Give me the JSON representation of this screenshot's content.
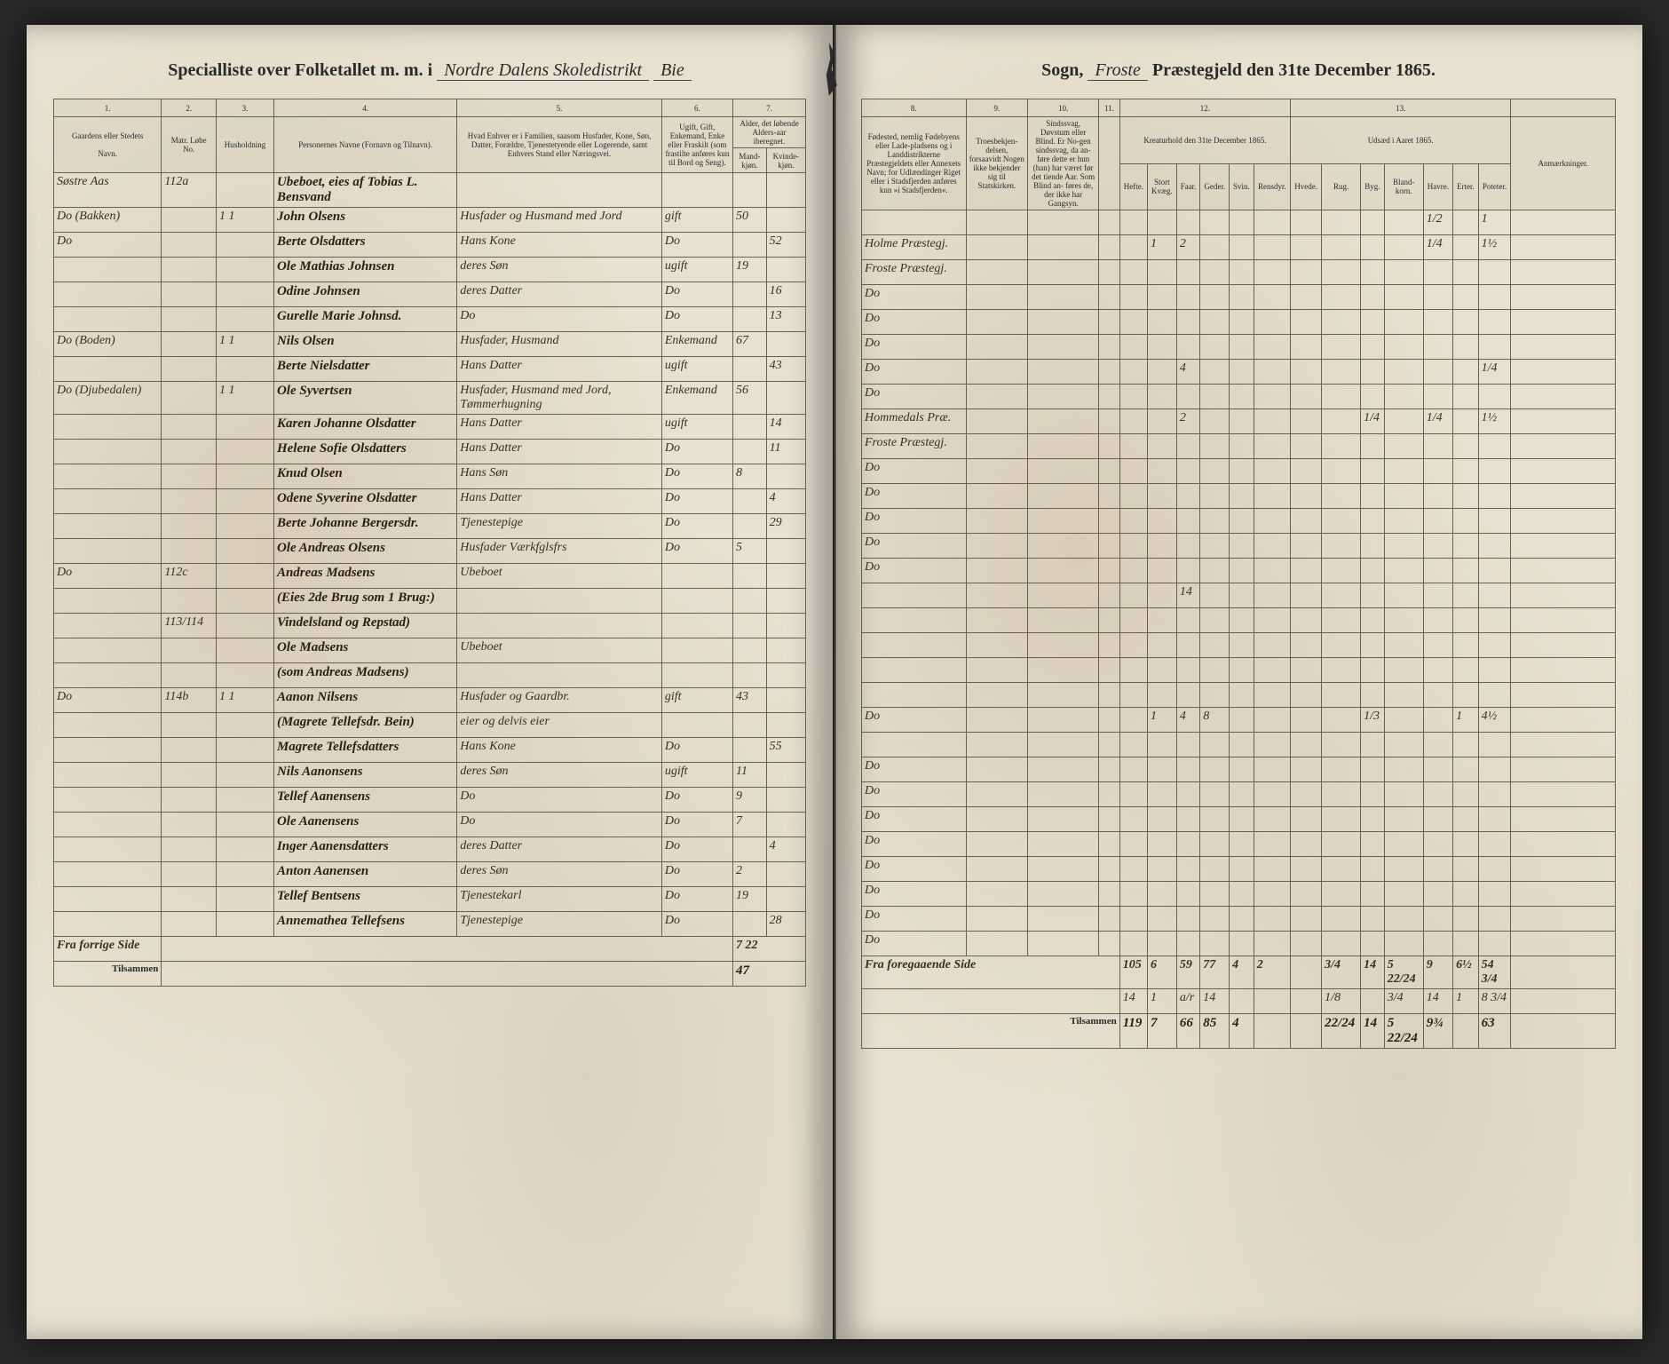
{
  "header": {
    "print_left": "Specialliste over Folketallet m. m. i",
    "written_district": "Nordre Dalens Skoledistrikt",
    "written_sogn": "Bie",
    "print_sogn": "Sogn,",
    "written_parish": "Froste",
    "print_right": "Præstegjeld den 31te December 1865."
  },
  "columns_left": {
    "c1": "1.",
    "c2": "2.",
    "c3": "3.",
    "c4": "4.",
    "c5": "5.",
    "c6": "6.",
    "c7": "7.",
    "h1": "Gaardens eller Stedets",
    "h1b": "Navn.",
    "h2a": "Matr. Løbe No.",
    "h2b": "",
    "h3": "Husholdning",
    "h4": "Personernes Navne (Fornavn og Tilnavn).",
    "h5": "Hvad Enhver er i Familien, saasom Husfader, Kone, Søn, Datter, Forældre, Tjenestetyende eller Logerende, samt Enhvers Stand eller Næringsvei.",
    "h6": "Ugift, Gift, Enkemand, Enke eller Fraskilt (som frastilte anføres kun til Bord og Seng).",
    "h7a": "Alder, det løbende Alders-aar iberegnet.",
    "h7m": "Mand-kjøn.",
    "h7k": "Kvinde-kjøn."
  },
  "columns_right": {
    "c8": "8.",
    "c9": "9.",
    "c10": "10.",
    "c11": "11.",
    "c12": "12.",
    "c13": "13.",
    "h8": "Fødested, nemlig Fødebyens eller Lade-pladsens og i Landdistrikterne Præstegjeldets eller Annexets Navn; for Udlændinger Riget eller i Stadsfjerden anføres kun »i Stadsfjerden«.",
    "h9": "Troesbekjen-delsen, forsaavidt Nogen ikke bekjender sig til Statskirken.",
    "h10": "Sindssvag, Døvstum eller Blind. Er No-gen sindssvag, da an-føre dette er hun (han) har været før det tiende Aar. Som Blind an- føres de, der ikke har Gangsyn.",
    "h11": "",
    "h12": "Kreaturhold den 31te December 1865.",
    "h12a": "Hefte.",
    "h12b": "Stort Kvæg.",
    "h12c": "Faar.",
    "h12d": "Geder.",
    "h12e": "Svin.",
    "h12f": "Rensdyr.",
    "h13": "Udsæd i Aaret 1865.",
    "h13a": "Hvede.",
    "h13b": "Rug.",
    "h13c": "Byg.",
    "h13d": "Bland-korn.",
    "h13e": "Havre.",
    "h13f": "Erter.",
    "h13g": "Poteter.",
    "h14": "Anmærkninger."
  },
  "rows": [
    {
      "farm": "Søstre Aas",
      "mno": "112a",
      "hh": "",
      "name": "Ubeboet, eies af Tobias L. Bensvand",
      "rel": "",
      "status": "",
      "ageM": "",
      "ageK": "",
      "birth": "",
      "c12": [
        "",
        "",
        "",
        "",
        "",
        ""
      ],
      "c13": [
        "",
        "",
        "",
        "",
        "1/2",
        "",
        "1"
      ]
    },
    {
      "farm": "Do (Bakken)",
      "mno": "",
      "hh": "1 1",
      "name": "John Olsens",
      "rel": "Husfader og Husmand med Jord",
      "status": "gift",
      "ageM": "50",
      "ageK": "",
      "birth": "Holme Præstegj.",
      "c12": [
        "",
        "1",
        "2",
        "",
        "",
        ""
      ],
      "c13": [
        "",
        "",
        "",
        "",
        "1/4",
        "",
        "1½"
      ]
    },
    {
      "farm": "Do",
      "mno": "",
      "hh": "",
      "name": "Berte Olsdatters",
      "rel": "Hans Kone",
      "status": "Do",
      "ageM": "",
      "ageK": "52",
      "birth": "Froste Præstegj.",
      "c12": [
        "",
        "",
        "",
        "",
        "",
        ""
      ],
      "c13": [
        "",
        "",
        "",
        "",
        "",
        "",
        ""
      ]
    },
    {
      "farm": "",
      "mno": "",
      "hh": "",
      "name": "Ole Mathias Johnsen",
      "rel": "deres Søn",
      "status": "ugift",
      "ageM": "19",
      "ageK": "",
      "birth": "Do",
      "c12": [
        "",
        "",
        "",
        "",
        "",
        ""
      ],
      "c13": [
        "",
        "",
        "",
        "",
        "",
        "",
        ""
      ]
    },
    {
      "farm": "",
      "mno": "",
      "hh": "",
      "name": "Odine Johnsen",
      "rel": "deres Datter",
      "status": "Do",
      "ageM": "",
      "ageK": "16",
      "birth": "Do",
      "c12": [
        "",
        "",
        "",
        "",
        "",
        ""
      ],
      "c13": [
        "",
        "",
        "",
        "",
        "",
        "",
        ""
      ]
    },
    {
      "farm": "",
      "mno": "",
      "hh": "",
      "name": "Gurelle Marie Johnsd.",
      "rel": "Do",
      "status": "Do",
      "ageM": "",
      "ageK": "13",
      "birth": "Do",
      "c12": [
        "",
        "",
        "",
        "",
        "",
        ""
      ],
      "c13": [
        "",
        "",
        "",
        "",
        "",
        "",
        ""
      ]
    },
    {
      "farm": "Do (Boden)",
      "mno": "",
      "hh": "1 1",
      "name": "Nils Olsen",
      "rel": "Husfader, Husmand",
      "status": "Enkemand",
      "ageM": "67",
      "ageK": "",
      "birth": "Do",
      "c12": [
        "",
        "",
        "4",
        "",
        "",
        ""
      ],
      "c13": [
        "",
        "",
        "",
        "",
        "",
        "",
        "1/4"
      ]
    },
    {
      "farm": "",
      "mno": "",
      "hh": "",
      "name": "Berte Nielsdatter",
      "rel": "Hans Datter",
      "status": "ugift",
      "ageM": "",
      "ageK": "43",
      "birth": "Do",
      "c12": [
        "",
        "",
        "",
        "",
        "",
        ""
      ],
      "c13": [
        "",
        "",
        "",
        "",
        "",
        "",
        ""
      ]
    },
    {
      "farm": "Do (Djubedalen)",
      "mno": "",
      "hh": "1 1",
      "name": "Ole Syvertsen",
      "rel": "Husfader, Husmand med Jord, Tømmerhugning",
      "status": "Enkemand",
      "ageM": "56",
      "ageK": "",
      "birth": "Hommedals Præ.",
      "c12": [
        "",
        "",
        "2",
        "",
        "",
        ""
      ],
      "c13": [
        "",
        "",
        "1/4",
        "",
        "1/4",
        "",
        "1½"
      ]
    },
    {
      "farm": "",
      "mno": "",
      "hh": "",
      "name": "Karen Johanne Olsdatter",
      "rel": "Hans Datter",
      "status": "ugift",
      "ageM": "",
      "ageK": "14",
      "birth": "Froste Præstegj.",
      "c12": [
        "",
        "",
        "",
        "",
        "",
        ""
      ],
      "c13": [
        "",
        "",
        "",
        "",
        "",
        "",
        ""
      ]
    },
    {
      "farm": "",
      "mno": "",
      "hh": "",
      "name": "Helene Sofie Olsdatters",
      "rel": "Hans Datter",
      "status": "Do",
      "ageM": "",
      "ageK": "11",
      "birth": "Do",
      "c12": [
        "",
        "",
        "",
        "",
        "",
        ""
      ],
      "c13": [
        "",
        "",
        "",
        "",
        "",
        "",
        ""
      ]
    },
    {
      "farm": "",
      "mno": "",
      "hh": "",
      "name": "Knud Olsen",
      "rel": "Hans Søn",
      "status": "Do",
      "ageM": "8",
      "ageK": "",
      "birth": "Do",
      "c12": [
        "",
        "",
        "",
        "",
        "",
        ""
      ],
      "c13": [
        "",
        "",
        "",
        "",
        "",
        "",
        ""
      ]
    },
    {
      "farm": "",
      "mno": "",
      "hh": "",
      "name": "Odene Syverine Olsdatter",
      "rel": "Hans Datter",
      "status": "Do",
      "ageM": "",
      "ageK": "4",
      "birth": "Do",
      "c12": [
        "",
        "",
        "",
        "",
        "",
        ""
      ],
      "c13": [
        "",
        "",
        "",
        "",
        "",
        "",
        ""
      ]
    },
    {
      "farm": "",
      "mno": "",
      "hh": "",
      "name": "Berte Johanne Bergersdr.",
      "rel": "Tjenestepige",
      "status": "Do",
      "ageM": "",
      "ageK": "29",
      "birth": "Do",
      "c12": [
        "",
        "",
        "",
        "",
        "",
        ""
      ],
      "c13": [
        "",
        "",
        "",
        "",
        "",
        "",
        ""
      ]
    },
    {
      "farm": "",
      "mno": "",
      "hh": "",
      "name": "Ole Andreas Olsens",
      "rel": "Husfader Værkfglsfrs",
      "status": "Do",
      "ageM": "5",
      "ageK": "",
      "birth": "Do",
      "c12": [
        "",
        "",
        "",
        "",
        "",
        ""
      ],
      "c13": [
        "",
        "",
        "",
        "",
        "",
        "",
        ""
      ]
    },
    {
      "farm": "Do",
      "mno": "112c",
      "hh": "",
      "name": "Andreas Madsens",
      "rel": "Ubeboet",
      "status": "",
      "ageM": "",
      "ageK": "",
      "birth": "",
      "c12": [
        "",
        "",
        "14",
        "",
        "",
        ""
      ],
      "c13": [
        "",
        "",
        "",
        "",
        "",
        "",
        ""
      ]
    },
    {
      "farm": "",
      "mno": "",
      "hh": "",
      "name": "(Eies 2de Brug som 1 Brug:)",
      "rel": "",
      "status": "",
      "ageM": "",
      "ageK": "",
      "birth": "",
      "c12": [
        "",
        "",
        "",
        "",
        "",
        ""
      ],
      "c13": [
        "",
        "",
        "",
        "",
        "",
        "",
        ""
      ]
    },
    {
      "farm": "",
      "mno": "113/114",
      "hh": "",
      "name": "Vindelsland og Repstad)",
      "rel": "",
      "status": "",
      "ageM": "",
      "ageK": "",
      "birth": "",
      "c12": [
        "",
        "",
        "",
        "",
        "",
        ""
      ],
      "c13": [
        "",
        "",
        "",
        "",
        "",
        "",
        ""
      ]
    },
    {
      "farm": "",
      "mno": "",
      "hh": "",
      "name": "Ole Madsens",
      "rel": "Ubeboet",
      "status": "",
      "ageM": "",
      "ageK": "",
      "birth": "",
      "c12": [
        "",
        "",
        "",
        "",
        "",
        ""
      ],
      "c13": [
        "",
        "",
        "",
        "",
        "",
        "",
        ""
      ]
    },
    {
      "farm": "",
      "mno": "",
      "hh": "",
      "name": "(som Andreas Madsens)",
      "rel": "",
      "status": "",
      "ageM": "",
      "ageK": "",
      "birth": "",
      "c12": [
        "",
        "",
        "",
        "",
        "",
        ""
      ],
      "c13": [
        "",
        "",
        "",
        "",
        "",
        "",
        ""
      ]
    },
    {
      "farm": "Do",
      "mno": "114b",
      "hh": "1 1",
      "name": "Aanon Nilsens",
      "rel": "Husfader og Gaardbr.",
      "status": "gift",
      "ageM": "43",
      "ageK": "",
      "birth": "Do",
      "c12": [
        "",
        "1",
        "4",
        "8",
        "",
        ""
      ],
      "c13": [
        "",
        "",
        "1/3",
        "",
        "",
        "1",
        "4½"
      ]
    },
    {
      "farm": "",
      "mno": "",
      "hh": "",
      "name": "(Magrete Tellefsdr. Bein)",
      "rel": "eier og delvis eier",
      "status": "",
      "ageM": "",
      "ageK": "",
      "birth": "",
      "c12": [
        "",
        "",
        "",
        "",
        "",
        ""
      ],
      "c13": [
        "",
        "",
        "",
        "",
        "",
        "",
        ""
      ]
    },
    {
      "farm": "",
      "mno": "",
      "hh": "",
      "name": "Magrete Tellefsdatters",
      "rel": "Hans Kone",
      "status": "Do",
      "ageM": "",
      "ageK": "55",
      "birth": "Do",
      "c12": [
        "",
        "",
        "",
        "",
        "",
        ""
      ],
      "c13": [
        "",
        "",
        "",
        "",
        "",
        "",
        ""
      ]
    },
    {
      "farm": "",
      "mno": "",
      "hh": "",
      "name": "Nils Aanonsens",
      "rel": "deres Søn",
      "status": "ugift",
      "ageM": "11",
      "ageK": "",
      "birth": "Do",
      "c12": [
        "",
        "",
        "",
        "",
        "",
        ""
      ],
      "c13": [
        "",
        "",
        "",
        "",
        "",
        "",
        ""
      ]
    },
    {
      "farm": "",
      "mno": "",
      "hh": "",
      "name": "Tellef Aanensens",
      "rel": "Do",
      "status": "Do",
      "ageM": "9",
      "ageK": "",
      "birth": "Do",
      "c12": [
        "",
        "",
        "",
        "",
        "",
        ""
      ],
      "c13": [
        "",
        "",
        "",
        "",
        "",
        "",
        ""
      ]
    },
    {
      "farm": "",
      "mno": "",
      "hh": "",
      "name": "Ole Aanensens",
      "rel": "Do",
      "status": "Do",
      "ageM": "7",
      "ageK": "",
      "birth": "Do",
      "c12": [
        "",
        "",
        "",
        "",
        "",
        ""
      ],
      "c13": [
        "",
        "",
        "",
        "",
        "",
        "",
        ""
      ]
    },
    {
      "farm": "",
      "mno": "",
      "hh": "",
      "name": "Inger Aanensdatters",
      "rel": "deres Datter",
      "status": "Do",
      "ageM": "",
      "ageK": "4",
      "birth": "Do",
      "c12": [
        "",
        "",
        "",
        "",
        "",
        ""
      ],
      "c13": [
        "",
        "",
        "",
        "",
        "",
        "",
        ""
      ]
    },
    {
      "farm": "",
      "mno": "",
      "hh": "",
      "name": "Anton Aanensen",
      "rel": "deres Søn",
      "status": "Do",
      "ageM": "2",
      "ageK": "",
      "birth": "Do",
      "c12": [
        "",
        "",
        "",
        "",
        "",
        ""
      ],
      "c13": [
        "",
        "",
        "",
        "",
        "",
        "",
        ""
      ]
    },
    {
      "farm": "",
      "mno": "",
      "hh": "",
      "name": "Tellef Bentsens",
      "rel": "Tjenestekarl",
      "status": "Do",
      "ageM": "19",
      "ageK": "",
      "birth": "Do",
      "c12": [
        "",
        "",
        "",
        "",
        "",
        ""
      ],
      "c13": [
        "",
        "",
        "",
        "",
        "",
        "",
        ""
      ]
    },
    {
      "farm": "",
      "mno": "",
      "hh": "",
      "name": "Annemathea Tellefsens",
      "rel": "Tjenestepige",
      "status": "Do",
      "ageM": "",
      "ageK": "28",
      "birth": "Do",
      "c12": [
        "",
        "",
        "",
        "",
        "",
        ""
      ],
      "c13": [
        "",
        "",
        "",
        "",
        "",
        "",
        ""
      ]
    }
  ],
  "footer": {
    "left_label1": "Fra forrige Side",
    "left_label2": "Tilsammen",
    "left_v1": "7 22",
    "left_v2": "47",
    "right_label1": "Fra foregaaende Side",
    "right_label2": "Tilsammen",
    "sums1": [
      "105",
      "6",
      "59",
      "77",
      "4",
      "2",
      "",
      "3/4",
      "14",
      "5 22/24",
      "9",
      "6½",
      "54 3/4"
    ],
    "sums2": [
      "14",
      "1",
      "a/r",
      "14",
      "",
      "",
      "",
      "1/8",
      "",
      "3/4",
      "14",
      "1",
      "8 3/4"
    ],
    "sums3": [
      "119",
      "7",
      "66",
      "85",
      "4",
      "",
      "",
      "22/24",
      "14",
      "5 22/24",
      "9¾",
      "",
      "63"
    ]
  },
  "colors": {
    "paper": "#e8e0d0",
    "ink": "#2a2015",
    "rule": "#6a6050"
  }
}
